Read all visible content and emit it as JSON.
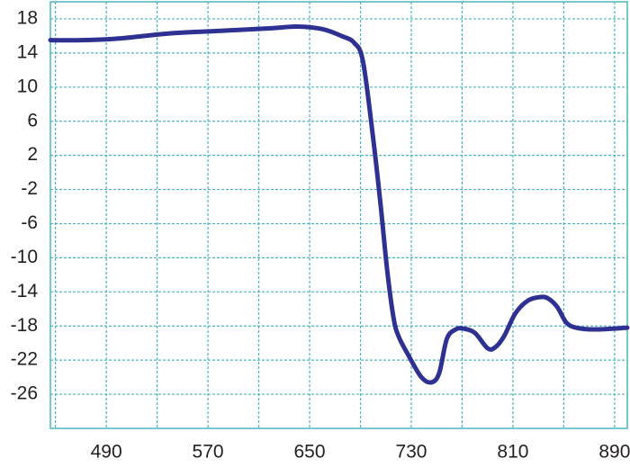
{
  "chart_data": {
    "type": "line",
    "x": [
      446,
      470,
      500,
      540,
      580,
      620,
      640,
      660,
      675,
      685,
      692,
      700,
      706,
      711,
      716,
      720,
      728,
      738,
      746,
      752,
      758,
      765,
      771,
      780,
      790,
      796,
      803,
      812,
      822,
      832,
      838,
      845,
      852,
      860,
      875,
      900
    ],
    "series": [
      {
        "color": "#2e3192",
        "values": [
          15.5,
          15.5,
          15.7,
          16.3,
          16.6,
          16.9,
          17.1,
          16.8,
          16,
          15.2,
          13,
          4,
          -4,
          -11.4,
          -17,
          -19.2,
          -21.5,
          -24,
          -24.6,
          -23.5,
          -19.5,
          -18.4,
          -18.3,
          -18.8,
          -20.6,
          -20.5,
          -19.2,
          -16.5,
          -15,
          -14.6,
          -14.8,
          -15.8,
          -17.6,
          -18.2,
          -18.4,
          -18.2
        ]
      }
    ],
    "xlim": [
      446,
      900
    ],
    "xticks": [
      490,
      570,
      650,
      730,
      810,
      890
    ],
    "xminor": [
      450,
      530,
      610,
      690,
      770,
      850
    ],
    "ylim": [
      -30,
      20
    ],
    "yticks": [
      18,
      14,
      10,
      6,
      2,
      -2,
      -6,
      -10,
      -14,
      -18,
      -22,
      -26
    ],
    "grid": true,
    "grid_color": "#4bb5c1"
  }
}
